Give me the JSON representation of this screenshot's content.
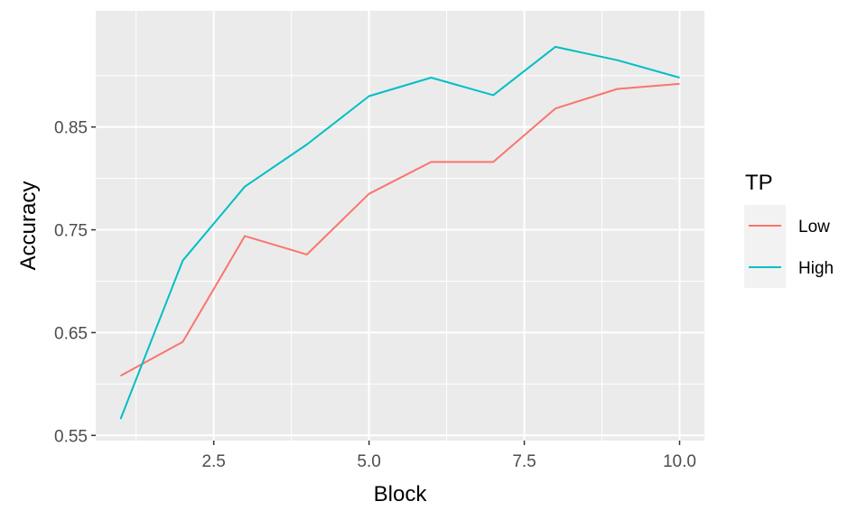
{
  "chart_data": {
    "type": "line",
    "xlabel": "Block",
    "ylabel": "Accuracy",
    "xlim": [
      0.6,
      10.4
    ],
    "ylim": [
      0.545,
      0.963
    ],
    "x_ticks": [
      2.5,
      5.0,
      7.5,
      10.0
    ],
    "x_tick_labels": [
      "2.5",
      "5.0",
      "7.5",
      "10.0"
    ],
    "y_ticks": [
      0.55,
      0.65,
      0.75,
      0.85
    ],
    "y_tick_labels": [
      "0.55",
      "0.65",
      "0.75",
      "0.85"
    ],
    "grid": true,
    "legend": {
      "title": "TP",
      "position": "right"
    },
    "x": [
      1,
      2,
      3,
      4,
      5,
      6,
      7,
      8,
      9,
      10
    ],
    "series": [
      {
        "name": "Low",
        "color": "#F8766D",
        "values": [
          0.608,
          0.641,
          0.744,
          0.726,
          0.785,
          0.816,
          0.816,
          0.868,
          0.887,
          0.892
        ]
      },
      {
        "name": "High",
        "color": "#00BFC4",
        "values": [
          0.566,
          0.72,
          0.792,
          0.833,
          0.88,
          0.898,
          0.881,
          0.928,
          0.915,
          0.898
        ]
      }
    ]
  }
}
